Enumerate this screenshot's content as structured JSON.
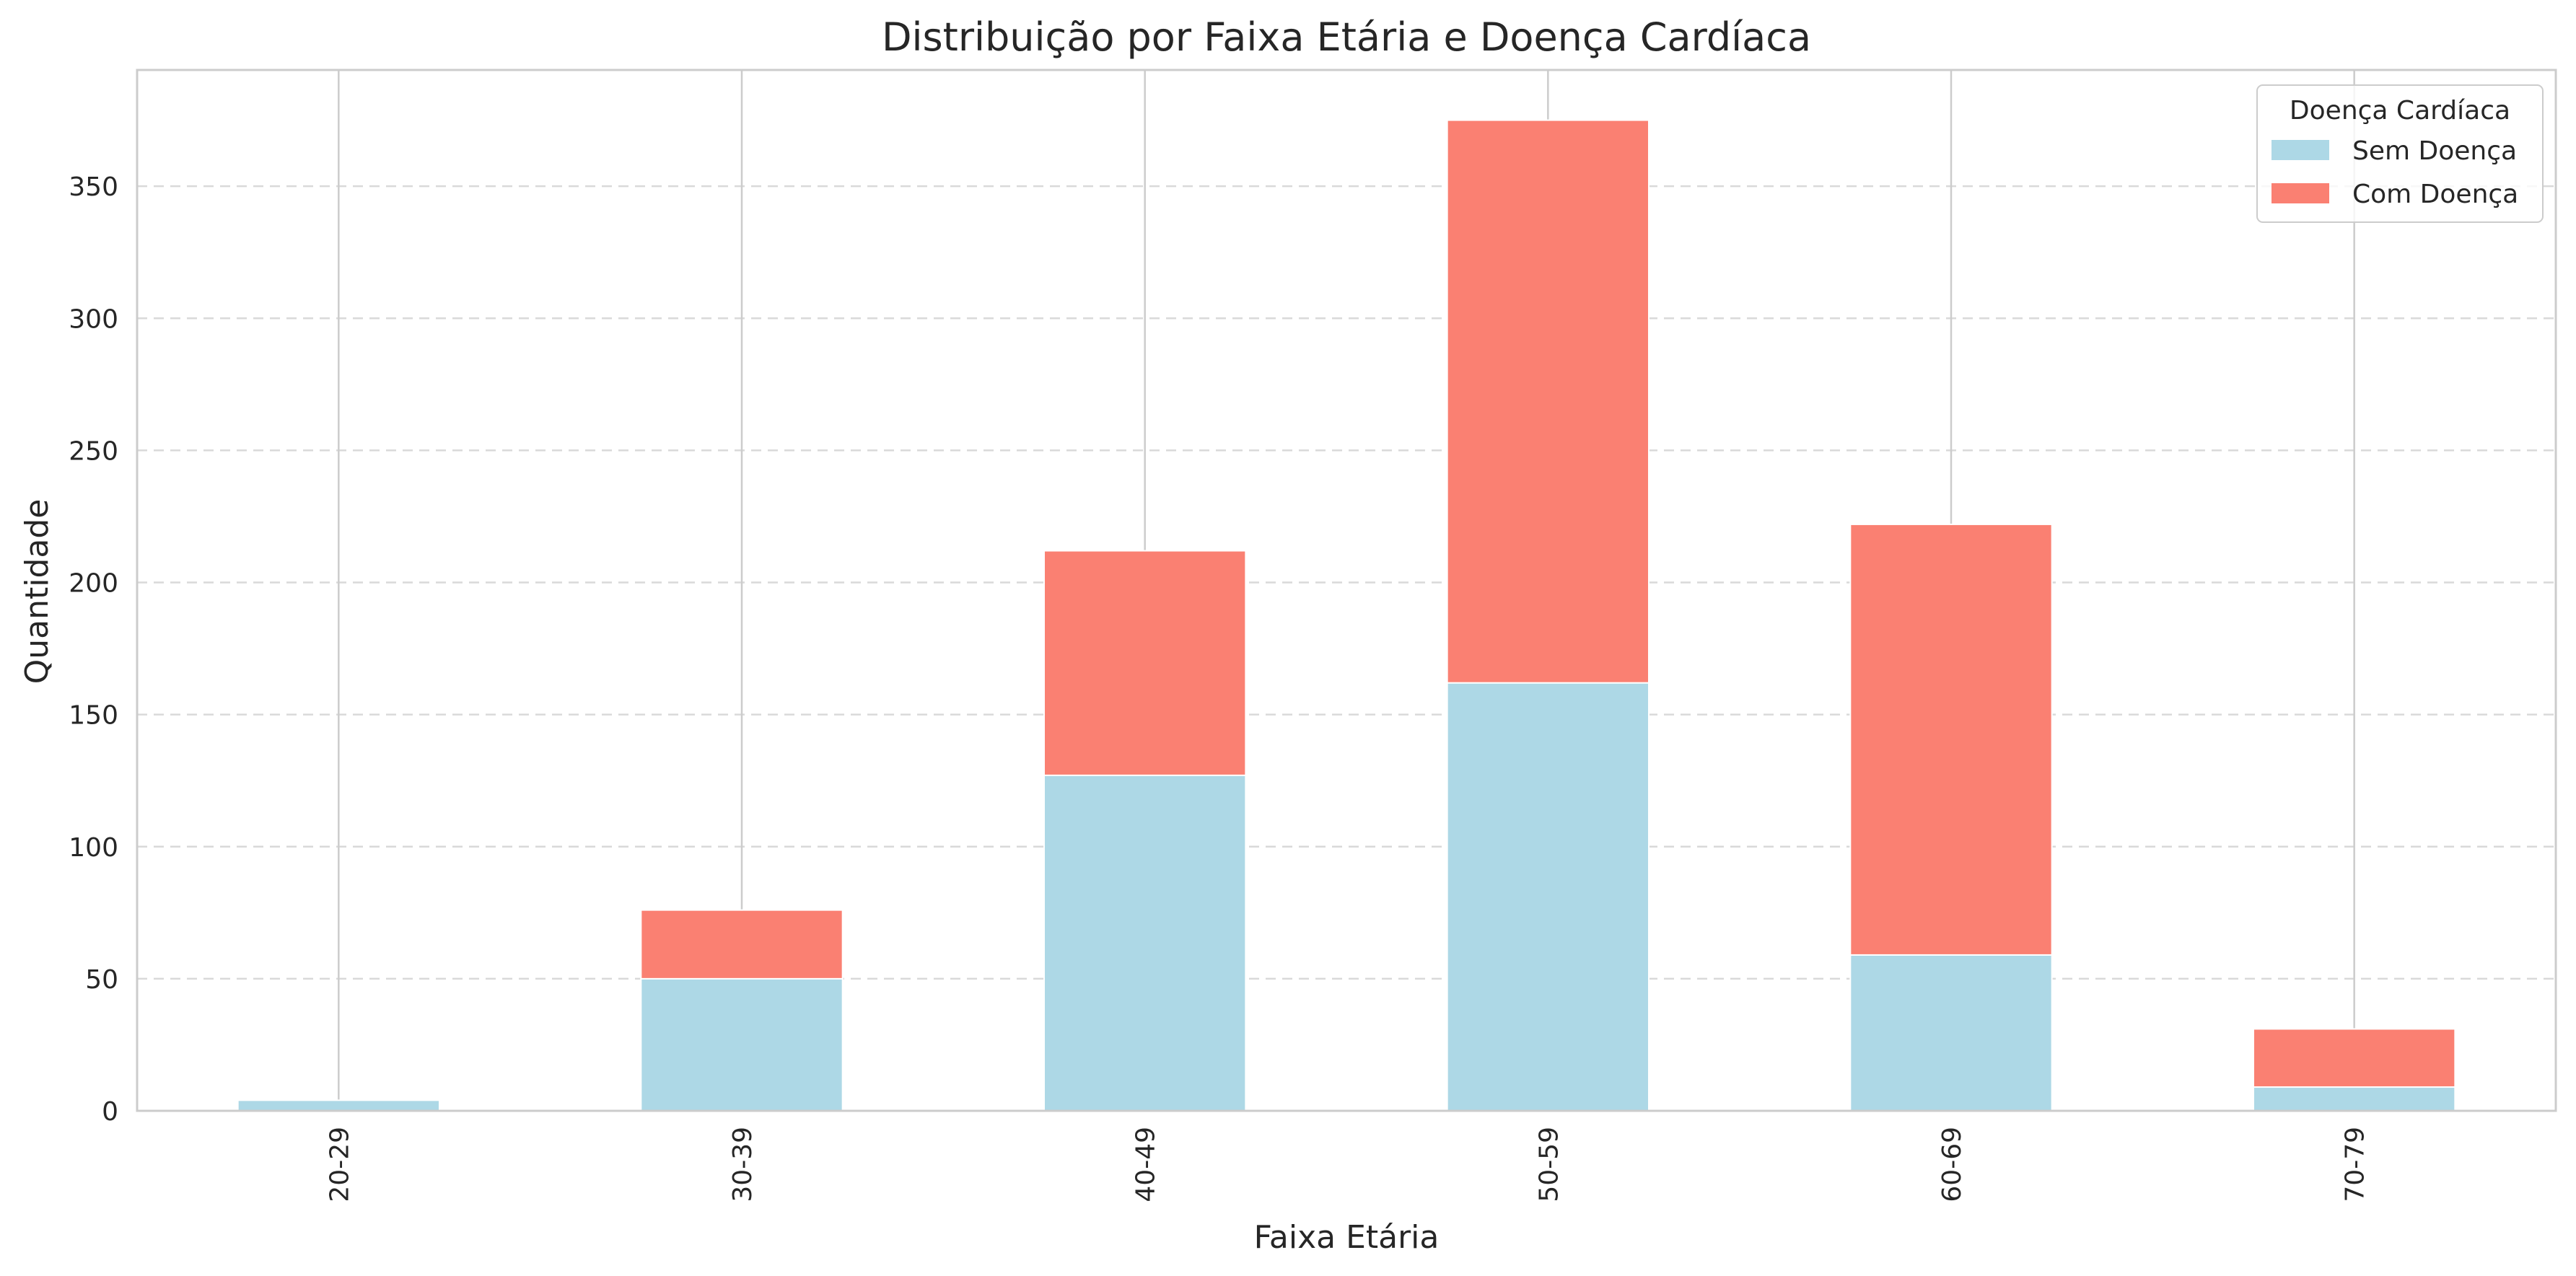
{
  "chart_data": {
    "type": "bar",
    "stacked": true,
    "title": "Distribuição por Faixa Etária e Doença Cardíaca",
    "xlabel": "Faixa Etária",
    "ylabel": "Quantidade",
    "categories": [
      "20-29",
      "30-39",
      "40-49",
      "50-59",
      "60-69",
      "70-79"
    ],
    "series": [
      {
        "name": "Sem Doença",
        "values": [
          4,
          50,
          127,
          162,
          59,
          9
        ],
        "color": "#add8e6"
      },
      {
        "name": "Com Doença",
        "values": [
          0,
          26,
          85,
          213,
          163,
          22
        ],
        "color": "#fa8072"
      }
    ],
    "ylim": [
      0,
      394
    ],
    "yticks": [
      0,
      50,
      100,
      150,
      200,
      250,
      300,
      350
    ],
    "grid": "horizontal dashed",
    "legend": {
      "title": "Doença Cardíaca",
      "placement": "top-right"
    }
  }
}
